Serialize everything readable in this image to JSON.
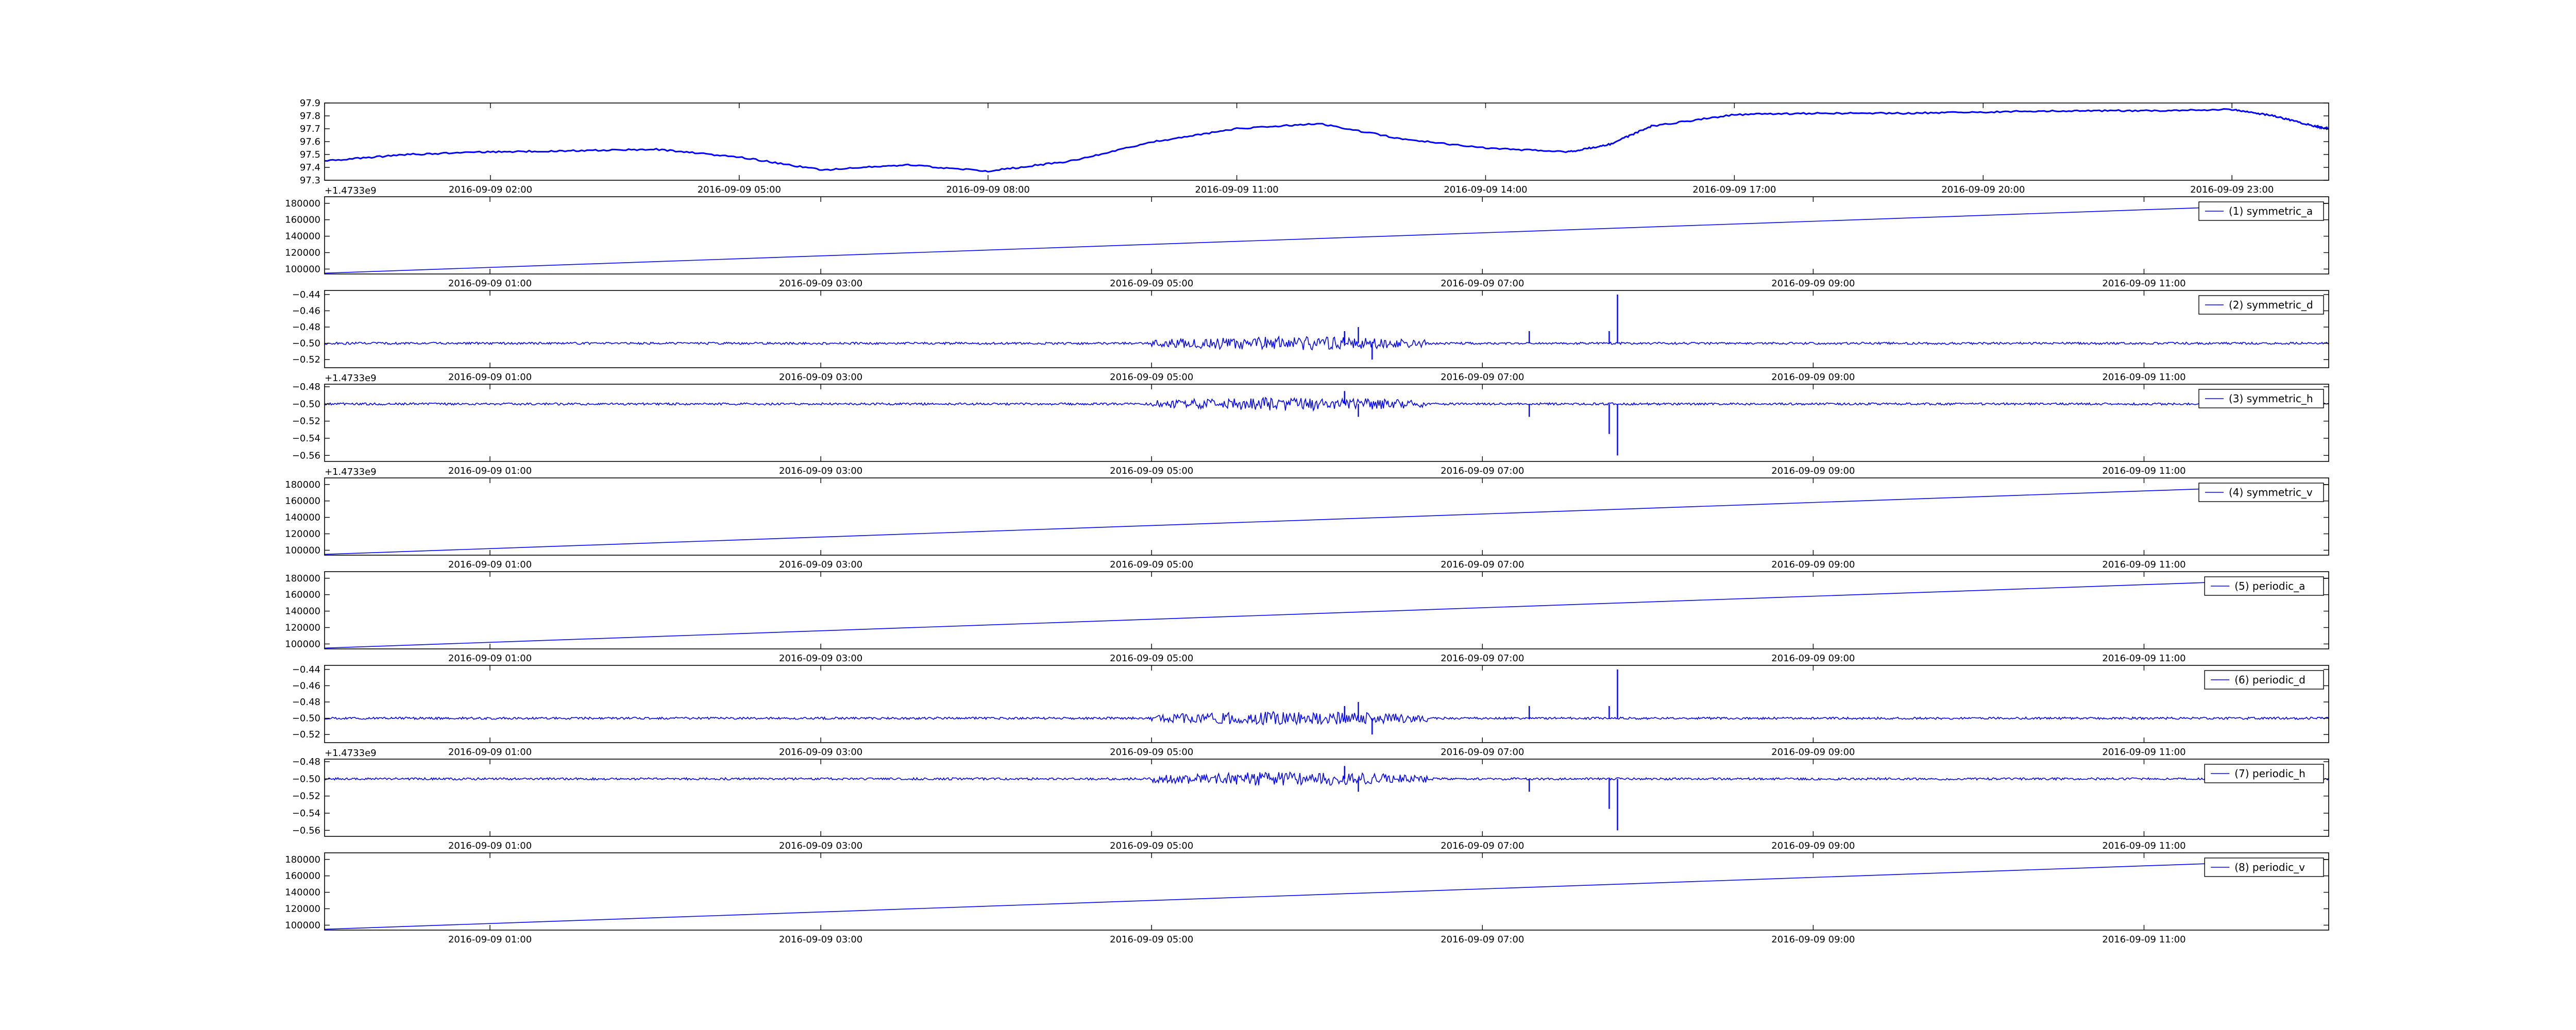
{
  "colors": {
    "line": "#0000ff",
    "axes": "#000000",
    "background": "#ffffff",
    "legend_border": "#000000"
  },
  "chart_data": [
    {
      "type": "line",
      "name": "",
      "ylim": [
        97.3,
        97.9
      ],
      "yticks": [
        "97.3",
        "97.4",
        "97.5",
        "97.6",
        "97.7",
        "97.8",
        "97.9"
      ],
      "xtick_labels": [
        "2016-09-09 02:00",
        "2016-09-09 05:00",
        "2016-09-09 08:00",
        "2016-09-09 11:00",
        "2016-09-09 14:00",
        "2016-09-09 17:00",
        "2016-09-09 20:00",
        "2016-09-09 23:00"
      ],
      "xlim": [
        "2016-09-09 00:00",
        "2016-09-10 00:10"
      ],
      "offset_label": "",
      "legend": null,
      "linewidth": "thick",
      "series": [
        {
          "x": [
            "2016-09-09 00:00",
            "2016-09-09 01:00",
            "2016-09-09 02:00",
            "2016-09-09 03:00",
            "2016-09-09 04:00",
            "2016-09-09 05:00",
            "2016-09-09 06:00",
            "2016-09-09 07:00",
            "2016-09-09 08:00",
            "2016-09-09 09:00",
            "2016-09-09 10:00",
            "2016-09-09 11:00",
            "2016-09-09 12:00",
            "2016-09-09 13:00",
            "2016-09-09 14:00",
            "2016-09-09 15:00",
            "2016-09-09 15:30",
            "2016-09-09 16:00",
            "2016-09-09 17:00",
            "2016-09-09 18:00",
            "2016-09-09 19:00",
            "2016-09-09 20:00",
            "2016-09-09 21:00",
            "2016-09-09 22:00",
            "2016-09-09 23:00",
            "2016-09-09 23:30",
            "2016-09-10 00:00",
            "2016-09-10 00:10"
          ],
          "y": [
            97.45,
            97.5,
            97.52,
            97.53,
            97.54,
            97.48,
            97.38,
            97.42,
            97.37,
            97.45,
            97.6,
            97.7,
            97.74,
            97.62,
            97.55,
            97.52,
            97.58,
            97.72,
            97.81,
            97.82,
            97.82,
            97.83,
            97.84,
            97.84,
            97.85,
            97.8,
            97.72,
            97.7
          ]
        }
      ]
    },
    {
      "type": "line",
      "name": "symmetric_a",
      "ylim": [
        94000,
        188000
      ],
      "yticks": [
        "100000",
        "120000",
        "140000",
        "160000",
        "180000"
      ],
      "xtick_labels": [
        "2016-09-09 01:00",
        "2016-09-09 03:00",
        "2016-09-09 05:00",
        "2016-09-09 07:00",
        "2016-09-09 09:00",
        "2016-09-09 11:00"
      ],
      "xlim": [
        "2016-09-09 00:00",
        "2016-09-09 12:07"
      ],
      "offset_label": "+1.4733e9",
      "legend": "(1) symmetric_a",
      "linewidth": "thin",
      "series": [
        {
          "x": [
            "2016-09-09 00:00",
            "2016-09-09 12:07"
          ],
          "y": [
            95000,
            180000
          ]
        }
      ]
    },
    {
      "type": "line",
      "name": "symmetric_d",
      "ylim": [
        -0.53,
        -0.435
      ],
      "yticks": [
        "-0.52",
        "-0.50",
        "-0.48",
        "-0.46",
        "-0.44"
      ],
      "xtick_labels": [
        "2016-09-09 01:00",
        "2016-09-09 03:00",
        "2016-09-09 05:00",
        "2016-09-09 07:00",
        "2016-09-09 09:00",
        "2016-09-09 11:00"
      ],
      "xlim": [
        "2016-09-09 00:00",
        "2016-09-09 12:07"
      ],
      "offset_label": "",
      "legend": "(2) symmetric_d",
      "linewidth": "thick",
      "baseline": -0.5,
      "series": [
        {
          "x": [
            "2016-09-09 06:10",
            "2016-09-09 06:15",
            "2016-09-09 06:20",
            "2016-09-09 07:17",
            "2016-09-09 07:46",
            "2016-09-09 07:49"
          ],
          "y": [
            -0.485,
            -0.48,
            -0.52,
            -0.485,
            -0.485,
            -0.44
          ]
        }
      ]
    },
    {
      "type": "line",
      "name": "symmetric_h",
      "ylim": [
        -0.567,
        -0.477
      ],
      "yticks": [
        "-0.56",
        "-0.54",
        "-0.52",
        "-0.50",
        "-0.48"
      ],
      "xtick_labels": [
        "2016-09-09 01:00",
        "2016-09-09 03:00",
        "2016-09-09 05:00",
        "2016-09-09 07:00",
        "2016-09-09 09:00",
        "2016-09-09 11:00"
      ],
      "xlim": [
        "2016-09-09 00:00",
        "2016-09-09 12:07"
      ],
      "offset_label": "+1.4733e9",
      "legend": "(3) symmetric_h",
      "linewidth": "thick",
      "baseline": -0.5,
      "series": [
        {
          "x": [
            "2016-09-09 06:10",
            "2016-09-09 06:15",
            "2016-09-09 07:17",
            "2016-09-09 07:46",
            "2016-09-09 07:49"
          ],
          "y": [
            -0.485,
            -0.515,
            -0.515,
            -0.535,
            -0.56
          ]
        }
      ]
    },
    {
      "type": "line",
      "name": "symmetric_v",
      "ylim": [
        94000,
        188000
      ],
      "yticks": [
        "100000",
        "120000",
        "140000",
        "160000",
        "180000"
      ],
      "xtick_labels": [
        "2016-09-09 01:00",
        "2016-09-09 03:00",
        "2016-09-09 05:00",
        "2016-09-09 07:00",
        "2016-09-09 09:00",
        "2016-09-09 11:00"
      ],
      "xlim": [
        "2016-09-09 00:00",
        "2016-09-09 12:07"
      ],
      "offset_label": "+1.4733e9",
      "legend": "(4) symmetric_v",
      "linewidth": "thin",
      "series": [
        {
          "x": [
            "2016-09-09 00:00",
            "2016-09-09 12:07"
          ],
          "y": [
            95000,
            180000
          ]
        }
      ]
    },
    {
      "type": "line",
      "name": "periodic_a",
      "ylim": [
        94000,
        188000
      ],
      "yticks": [
        "100000",
        "120000",
        "140000",
        "160000",
        "180000"
      ],
      "xtick_labels": [
        "2016-09-09 01:00",
        "2016-09-09 03:00",
        "2016-09-09 05:00",
        "2016-09-09 07:00",
        "2016-09-09 09:00",
        "2016-09-09 11:00"
      ],
      "xlim": [
        "2016-09-09 00:00",
        "2016-09-09 12:07"
      ],
      "offset_label": "",
      "legend": "(5) periodic_a",
      "linewidth": "thin",
      "series": [
        {
          "x": [
            "2016-09-09 00:00",
            "2016-09-09 12:07"
          ],
          "y": [
            95000,
            180000
          ]
        }
      ]
    },
    {
      "type": "line",
      "name": "periodic_d",
      "ylim": [
        -0.53,
        -0.435
      ],
      "yticks": [
        "-0.52",
        "-0.50",
        "-0.48",
        "-0.46",
        "-0.44"
      ],
      "xtick_labels": [
        "2016-09-09 01:00",
        "2016-09-09 03:00",
        "2016-09-09 05:00",
        "2016-09-09 07:00",
        "2016-09-09 09:00",
        "2016-09-09 11:00"
      ],
      "xlim": [
        "2016-09-09 00:00",
        "2016-09-09 12:07"
      ],
      "offset_label": "",
      "legend": "(6) periodic_d",
      "linewidth": "thick",
      "baseline": -0.5,
      "series": [
        {
          "x": [
            "2016-09-09 06:10",
            "2016-09-09 06:15",
            "2016-09-09 06:20",
            "2016-09-09 07:17",
            "2016-09-09 07:46",
            "2016-09-09 07:49"
          ],
          "y": [
            -0.485,
            -0.48,
            -0.52,
            -0.485,
            -0.485,
            -0.44
          ]
        }
      ]
    },
    {
      "type": "line",
      "name": "periodic_h",
      "ylim": [
        -0.567,
        -0.477
      ],
      "yticks": [
        "-0.56",
        "-0.54",
        "-0.52",
        "-0.50",
        "-0.48"
      ],
      "xtick_labels": [
        "2016-09-09 01:00",
        "2016-09-09 03:00",
        "2016-09-09 05:00",
        "2016-09-09 07:00",
        "2016-09-09 09:00",
        "2016-09-09 11:00"
      ],
      "xlim": [
        "2016-09-09 00:00",
        "2016-09-09 12:07"
      ],
      "offset_label": "+1.4733e9",
      "legend": "(7) periodic_h",
      "linewidth": "thick",
      "baseline": -0.5,
      "series": [
        {
          "x": [
            "2016-09-09 06:10",
            "2016-09-09 06:15",
            "2016-09-09 07:17",
            "2016-09-09 07:46",
            "2016-09-09 07:49"
          ],
          "y": [
            -0.485,
            -0.515,
            -0.515,
            -0.535,
            -0.56
          ]
        }
      ]
    },
    {
      "type": "line",
      "name": "periodic_v",
      "ylim": [
        94000,
        188000
      ],
      "yticks": [
        "100000",
        "120000",
        "140000",
        "160000",
        "180000"
      ],
      "xtick_labels": [
        "2016-09-09 01:00",
        "2016-09-09 03:00",
        "2016-09-09 05:00",
        "2016-09-09 07:00",
        "2016-09-09 09:00",
        "2016-09-09 11:00"
      ],
      "xlim": [
        "2016-09-09 00:00",
        "2016-09-09 12:07"
      ],
      "offset_label": "",
      "legend": "(8) periodic_v",
      "linewidth": "thin",
      "series": [
        {
          "x": [
            "2016-09-09 00:00",
            "2016-09-09 12:07"
          ],
          "y": [
            95000,
            180000
          ]
        }
      ]
    }
  ]
}
